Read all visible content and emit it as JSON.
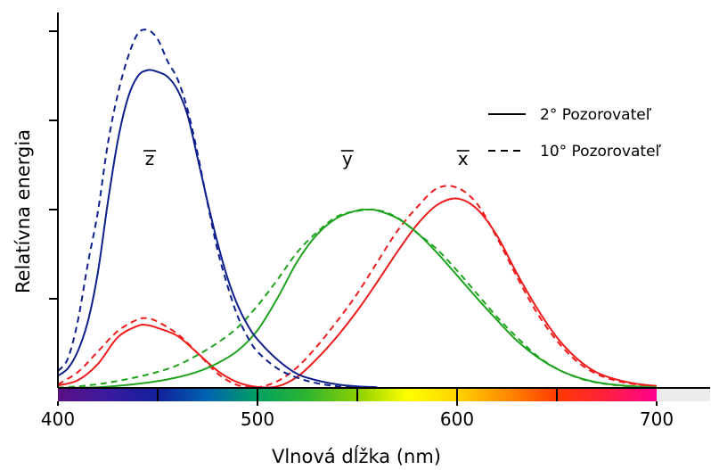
{
  "chart_data": {
    "type": "line",
    "title": "",
    "xlabel": "Vlnová dĺžka (nm)",
    "ylabel": "Relatívna energia",
    "xlim": [
      400,
      705
    ],
    "ylim": [
      0,
      2.0
    ],
    "x_ticks": [
      400,
      500,
      600,
      700
    ],
    "grid": false,
    "legend_position": "top-right",
    "legend": [
      {
        "label": "2° Pozorovateľ",
        "style": "solid"
      },
      {
        "label": "10° Pozorovateľ",
        "style": "dashed"
      }
    ],
    "curve_labels": [
      {
        "text": "z",
        "x": 446,
        "y": 1.25,
        "series": "z"
      },
      {
        "text": "y",
        "x": 545,
        "y": 1.25,
        "series": "y"
      },
      {
        "text": "x",
        "x": 603,
        "y": 1.25,
        "series": "x"
      }
    ],
    "colors": {
      "x": "#ee1c1c",
      "y": "#1fa31f",
      "z": "#0f1f8c",
      "axis": "#000000"
    },
    "spectrum_bar": {
      "range": [
        400,
        700
      ],
      "divisions": [
        450,
        500,
        550,
        600,
        650
      ],
      "colors": [
        "#5a0f83",
        "#3a1aa0",
        "#12209c",
        "#0064b0",
        "#00a060",
        "#2fb530",
        "#8cd000",
        "#ffff00",
        "#ffd400",
        "#ff8a00",
        "#ff3a00",
        "#ff2040",
        "#ff0090"
      ]
    },
    "series": [
      {
        "name": "x",
        "observer": "2°",
        "style": "solid",
        "color": "#ee1c1c",
        "x": [
          400,
          410,
          420,
          430,
          440,
          445,
          450,
          460,
          470,
          480,
          490,
          500,
          510,
          520,
          530,
          540,
          550,
          560,
          570,
          580,
          590,
          600,
          610,
          620,
          630,
          640,
          650,
          660,
          670,
          680,
          690,
          700
        ],
        "y": [
          0.014,
          0.043,
          0.134,
          0.284,
          0.348,
          0.352,
          0.336,
          0.291,
          0.195,
          0.096,
          0.032,
          0.005,
          0.009,
          0.063,
          0.166,
          0.29,
          0.433,
          0.594,
          0.762,
          0.916,
          1.026,
          1.062,
          1.003,
          0.854,
          0.642,
          0.448,
          0.284,
          0.165,
          0.087,
          0.047,
          0.023,
          0.011
        ]
      },
      {
        "name": "x",
        "observer": "10°",
        "style": "dashed",
        "color": "#ee1c1c",
        "x": [
          400,
          410,
          420,
          430,
          440,
          445,
          450,
          460,
          470,
          480,
          490,
          500,
          510,
          520,
          530,
          540,
          550,
          560,
          570,
          580,
          590,
          600,
          610,
          620,
          630,
          640,
          650,
          660,
          670,
          680,
          690,
          700
        ],
        "y": [
          0.02,
          0.089,
          0.204,
          0.319,
          0.384,
          0.39,
          0.371,
          0.302,
          0.195,
          0.081,
          0.016,
          0.004,
          0.038,
          0.117,
          0.236,
          0.376,
          0.529,
          0.705,
          0.879,
          1.014,
          1.119,
          1.123,
          1.033,
          0.842,
          0.623,
          0.422,
          0.265,
          0.149,
          0.078,
          0.04,
          0.019,
          0.009
        ]
      },
      {
        "name": "y",
        "observer": "2°",
        "style": "solid",
        "color": "#1fa31f",
        "x": [
          400,
          410,
          420,
          430,
          440,
          450,
          460,
          470,
          480,
          490,
          500,
          510,
          520,
          530,
          540,
          550,
          555,
          560,
          570,
          580,
          590,
          600,
          610,
          620,
          630,
          640,
          650,
          660,
          670,
          680,
          690,
          700
        ],
        "y": [
          0.0004,
          0.0012,
          0.004,
          0.0116,
          0.023,
          0.038,
          0.06,
          0.091,
          0.139,
          0.208,
          0.323,
          0.503,
          0.71,
          0.862,
          0.954,
          0.995,
          1.0,
          0.995,
          0.952,
          0.87,
          0.757,
          0.631,
          0.503,
          0.381,
          0.265,
          0.175,
          0.107,
          0.061,
          0.032,
          0.017,
          0.008,
          0.004
        ]
      },
      {
        "name": "y",
        "observer": "10°",
        "style": "dashed",
        "color": "#1fa31f",
        "x": [
          400,
          410,
          420,
          430,
          440,
          450,
          460,
          470,
          480,
          490,
          500,
          510,
          520,
          530,
          540,
          550,
          560,
          570,
          580,
          590,
          600,
          610,
          620,
          630,
          640,
          650,
          660,
          670,
          680,
          690,
          700
        ],
        "y": [
          0.002,
          0.009,
          0.021,
          0.039,
          0.062,
          0.09,
          0.128,
          0.185,
          0.253,
          0.339,
          0.461,
          0.607,
          0.762,
          0.875,
          0.962,
          0.992,
          0.997,
          0.955,
          0.868,
          0.777,
          0.658,
          0.528,
          0.398,
          0.284,
          0.181,
          0.108,
          0.059,
          0.03,
          0.015,
          0.007,
          0.003
        ]
      },
      {
        "name": "z",
        "observer": "2°",
        "style": "solid",
        "color": "#0f1f8c",
        "x": [
          400,
          405,
          410,
          415,
          420,
          425,
          430,
          435,
          440,
          445,
          450,
          455,
          460,
          465,
          470,
          475,
          480,
          485,
          490,
          495,
          500,
          510,
          520,
          530,
          540,
          550,
          560
        ],
        "y": [
          0.068,
          0.11,
          0.207,
          0.372,
          0.646,
          1.039,
          1.386,
          1.623,
          1.747,
          1.782,
          1.772,
          1.744,
          1.669,
          1.528,
          1.288,
          1.042,
          0.813,
          0.616,
          0.465,
          0.353,
          0.272,
          0.158,
          0.078,
          0.042,
          0.02,
          0.009,
          0.004
        ]
      },
      {
        "name": "z",
        "observer": "10°",
        "style": "dashed",
        "color": "#0f1f8c",
        "x": [
          400,
          405,
          410,
          415,
          420,
          425,
          430,
          435,
          440,
          445,
          450,
          455,
          460,
          465,
          470,
          475,
          480,
          485,
          490,
          495,
          500,
          510,
          520,
          530,
          540,
          550,
          560
        ],
        "y": [
          0.095,
          0.165,
          0.377,
          0.697,
          0.986,
          1.368,
          1.647,
          1.851,
          1.986,
          2.007,
          1.955,
          1.831,
          1.73,
          1.559,
          1.313,
          1.034,
          0.772,
          0.572,
          0.404,
          0.286,
          0.203,
          0.109,
          0.057,
          0.026,
          0.009,
          0.002,
          0.001
        ]
      }
    ]
  }
}
